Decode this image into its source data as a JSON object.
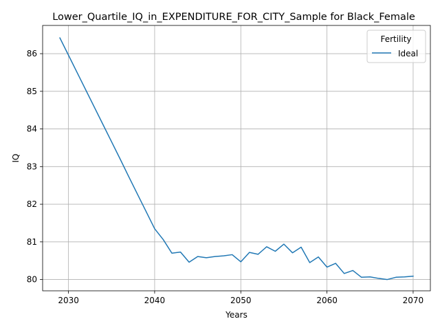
{
  "chart_data": {
    "type": "line",
    "title": "Lower_Quartile_IQ_in_EXPENDITURE_FOR_CITY_Sample for Black_Female",
    "xlabel": "Years",
    "ylabel": "IQ",
    "xlim": [
      2027,
      2072
    ],
    "ylim": [
      79.7,
      86.75
    ],
    "xticks": [
      2030,
      2040,
      2050,
      2060,
      2070
    ],
    "yticks": [
      80,
      81,
      82,
      83,
      84,
      85,
      86
    ],
    "grid": true,
    "legend": {
      "title": "Fertility",
      "placement": "top-right"
    },
    "series": [
      {
        "name": "Ideal",
        "color": "#1f77b4",
        "x": [
          2029,
          2030,
          2031,
          2032,
          2033,
          2034,
          2035,
          2036,
          2037,
          2038,
          2039,
          2040,
          2041,
          2042,
          2043,
          2044,
          2045,
          2046,
          2047,
          2048,
          2049,
          2050,
          2051,
          2052,
          2053,
          2054,
          2055,
          2056,
          2057,
          2058,
          2059,
          2060,
          2061,
          2062,
          2063,
          2064,
          2065,
          2066,
          2067,
          2068,
          2069,
          2070
        ],
        "y": [
          86.42,
          85.96,
          85.5,
          85.04,
          84.58,
          84.12,
          83.66,
          83.2,
          82.73,
          82.27,
          81.81,
          81.35,
          81.06,
          80.7,
          80.73,
          80.46,
          80.61,
          80.58,
          80.61,
          80.63,
          80.66,
          80.47,
          80.72,
          80.67,
          80.87,
          80.75,
          80.94,
          80.71,
          80.86,
          80.45,
          80.6,
          80.33,
          80.43,
          80.16,
          80.24,
          80.06,
          80.07,
          80.03,
          80.0,
          80.06,
          80.07,
          80.09
        ]
      }
    ]
  }
}
